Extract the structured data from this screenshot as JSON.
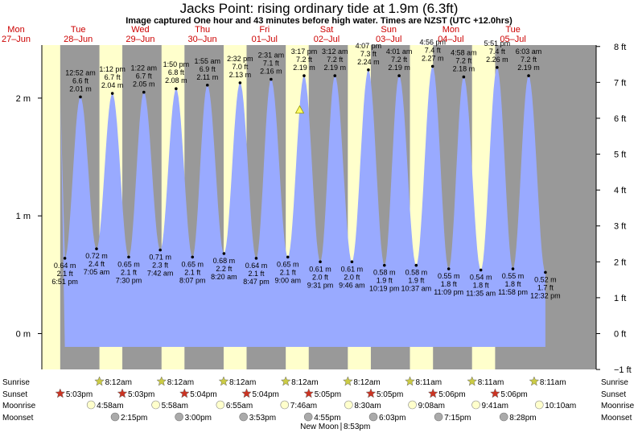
{
  "chart_data": {
    "type": "area",
    "title": "Jacks Point: rising  ordinary tide at 1.9m (6.3ft)",
    "subtitle": "Image captured One hour and 43 minutes before high water. Times are NZST (UTC +12.0hrs)",
    "days": [
      {
        "dow": "Mon",
        "date": "27–Jun"
      },
      {
        "dow": "Tue",
        "date": "28–Jun"
      },
      {
        "dow": "Wed",
        "date": "29–Jun"
      },
      {
        "dow": "Thu",
        "date": "30–Jun"
      },
      {
        "dow": "Fri",
        "date": "01–Jul"
      },
      {
        "dow": "Sat",
        "date": "02–Jul"
      },
      {
        "dow": "Sun",
        "date": "03–Jul"
      },
      {
        "dow": "Mon",
        "date": "04–Jul"
      },
      {
        "dow": "Tue",
        "date": "05–Jul"
      }
    ],
    "y_left": {
      "unit": "m",
      "ticks": [
        "0 m",
        "1 m",
        "2 m"
      ]
    },
    "y_right": {
      "unit": "ft",
      "ticks": [
        "−1 ft",
        "0 ft",
        "1 ft",
        "2 ft",
        "3 ft",
        "4 ft",
        "5 ft",
        "6 ft",
        "7 ft",
        "8 ft"
      ]
    },
    "ylim_m": [
      -0.3,
      2.55
    ],
    "tides": [
      {
        "type": "low",
        "time": "6:51 pm",
        "m": "0.64 m",
        "ft": "2.1 ft",
        "day": 0.785,
        "value": 0.64
      },
      {
        "type": "high",
        "time": "12:52 am",
        "m": "6.6 ft",
        "ft": "2.01 m",
        "day": 1.036,
        "value": 2.01
      },
      {
        "type": "low",
        "time": "7:05 am",
        "m": "0.72 m",
        "ft": "2.4 ft",
        "day": 1.295,
        "value": 0.72
      },
      {
        "type": "high",
        "time": "1:12 pm",
        "m": "6.7 ft",
        "ft": "2.04 m",
        "day": 1.55,
        "value": 2.04
      },
      {
        "type": "low",
        "time": "7:30 pm",
        "m": "0.65 m",
        "ft": "2.1 ft",
        "day": 1.813,
        "value": 0.65
      },
      {
        "type": "high",
        "time": "1:22 am",
        "m": "6.7 ft",
        "ft": "2.05 m",
        "day": 2.057,
        "value": 2.05
      },
      {
        "type": "low",
        "time": "7:42 am",
        "m": "0.71 m",
        "ft": "2.3 ft",
        "day": 2.321,
        "value": 0.71
      },
      {
        "type": "high",
        "time": "1:50 pm",
        "m": "6.8 ft",
        "ft": "2.08 m",
        "day": 2.576,
        "value": 2.08
      },
      {
        "type": "low",
        "time": "8:07 pm",
        "m": "0.65 m",
        "ft": "2.1 ft",
        "day": 2.84,
        "value": 0.65
      },
      {
        "type": "high",
        "time": "1:55 am",
        "m": "6.9 ft",
        "ft": "2.11 m",
        "day": 3.08,
        "value": 2.11
      },
      {
        "type": "low",
        "time": "8:20 am",
        "m": "0.68 m",
        "ft": "2.2 ft",
        "day": 3.347,
        "value": 0.68
      },
      {
        "type": "high",
        "time": "2:32 pm",
        "m": "7.0 ft",
        "ft": "2.13 m",
        "day": 3.606,
        "value": 2.13
      },
      {
        "type": "low",
        "time": "8:47 pm",
        "m": "0.64 m",
        "ft": "2.1 ft",
        "day": 3.866,
        "value": 0.64
      },
      {
        "type": "high",
        "time": "2:31 am",
        "m": "7.1 ft",
        "ft": "2.16 m",
        "day": 4.105,
        "value": 2.16
      },
      {
        "type": "low",
        "time": "9:00 am",
        "m": "0.65 m",
        "ft": "2.1 ft",
        "day": 4.375,
        "value": 0.65
      },
      {
        "type": "high",
        "time": "3:17 pm",
        "m": "7.2 ft",
        "ft": "2.19 m",
        "day": 4.637,
        "value": 2.19
      },
      {
        "type": "low",
        "time": "9:31 pm",
        "m": "0.61 m",
        "ft": "2.0 ft",
        "day": 4.897,
        "value": 0.61
      },
      {
        "type": "high",
        "time": "3:12 am",
        "m": "7.2 ft",
        "ft": "2.19 m",
        "day": 5.133,
        "value": 2.19
      },
      {
        "type": "low",
        "time": "9:46 am",
        "m": "0.61 m",
        "ft": "2.0 ft",
        "day": 5.407,
        "value": 0.61
      },
      {
        "type": "high",
        "time": "4:07 pm",
        "m": "7.3 ft",
        "ft": "2.24 m",
        "day": 5.672,
        "value": 2.24
      },
      {
        "type": "low",
        "time": "10:19 pm",
        "m": "0.58 m",
        "ft": "1.9 ft",
        "day": 5.93,
        "value": 0.58
      },
      {
        "type": "high",
        "time": "4:01 am",
        "m": "7.2 ft",
        "ft": "2.19 m",
        "day": 6.167,
        "value": 2.19
      },
      {
        "type": "low",
        "time": "10:37 am",
        "m": "0.58 m",
        "ft": "1.9 ft",
        "day": 6.442,
        "value": 0.58
      },
      {
        "type": "high",
        "time": "4:56 pm",
        "m": "7.4 ft",
        "ft": "2.27 m",
        "day": 6.706,
        "value": 2.27
      },
      {
        "type": "low",
        "time": "11:09 pm",
        "m": "0.55 m",
        "ft": "1.8 ft",
        "day": 6.965,
        "value": 0.55
      },
      {
        "type": "high",
        "time": "4:58 am",
        "m": "7.2 ft",
        "ft": "2.18 m",
        "day": 7.207,
        "value": 2.18
      },
      {
        "type": "low",
        "time": "11:35 am",
        "m": "0.54 m",
        "ft": "1.8 ft",
        "day": 7.483,
        "value": 0.54
      },
      {
        "type": "high",
        "time": "5:51 pm",
        "m": "7.4 ft",
        "ft": "2.26 m",
        "day": 7.744,
        "value": 2.26
      },
      {
        "type": "low",
        "time": "11:58 pm",
        "m": "0.55 m",
        "ft": "1.8 ft",
        "day": 7.999,
        "value": 0.55
      },
      {
        "type": "high",
        "time": "6:03 am",
        "m": "7.2 ft",
        "ft": "2.19 m",
        "day": 8.252,
        "value": 2.19
      },
      {
        "type": "low",
        "time": "12:32 pm",
        "m": "0.52 m",
        "ft": "1.7 ft",
        "day": 8.522,
        "value": 0.52
      }
    ],
    "now_marker": {
      "day": 4.566,
      "value": 1.9
    },
    "sunrise": [
      "8:12am",
      "8:12am",
      "8:12am",
      "8:12am",
      "8:12am",
      "8:11am",
      "8:11am",
      "8:11am"
    ],
    "sunset": [
      "5:03pm",
      "5:03pm",
      "5:04pm",
      "5:04pm",
      "5:05pm",
      "5:05pm",
      "5:06pm",
      "5:06pm"
    ],
    "moonrise": [
      "4:58am",
      "5:58am",
      "6:55am",
      "7:46am",
      "8:30am",
      "9:08am",
      "9:41am",
      "10:10am"
    ],
    "moonset": [
      "2:15pm",
      "3:00pm",
      "3:53pm",
      "4:55pm",
      "6:03pm",
      "7:15pm",
      "8:28pm"
    ],
    "row_labels": {
      "sunrise": "Sunrise",
      "sunset": "Sunset",
      "moonrise": "Moonrise",
      "moonset": "Moonset"
    },
    "new_moon": "New Moon",
    "new_moon_time": "8:53pm"
  },
  "colors": {
    "day": "#ffffcc",
    "night": "#999999",
    "water": "#99aaff",
    "sun_marker": "#cc3322",
    "sunrise_marker": "#cccc44",
    "moonrise_marker": "#ffffcc",
    "moonset_marker": "#aaaaaa",
    "day_label": "#cc0000"
  }
}
